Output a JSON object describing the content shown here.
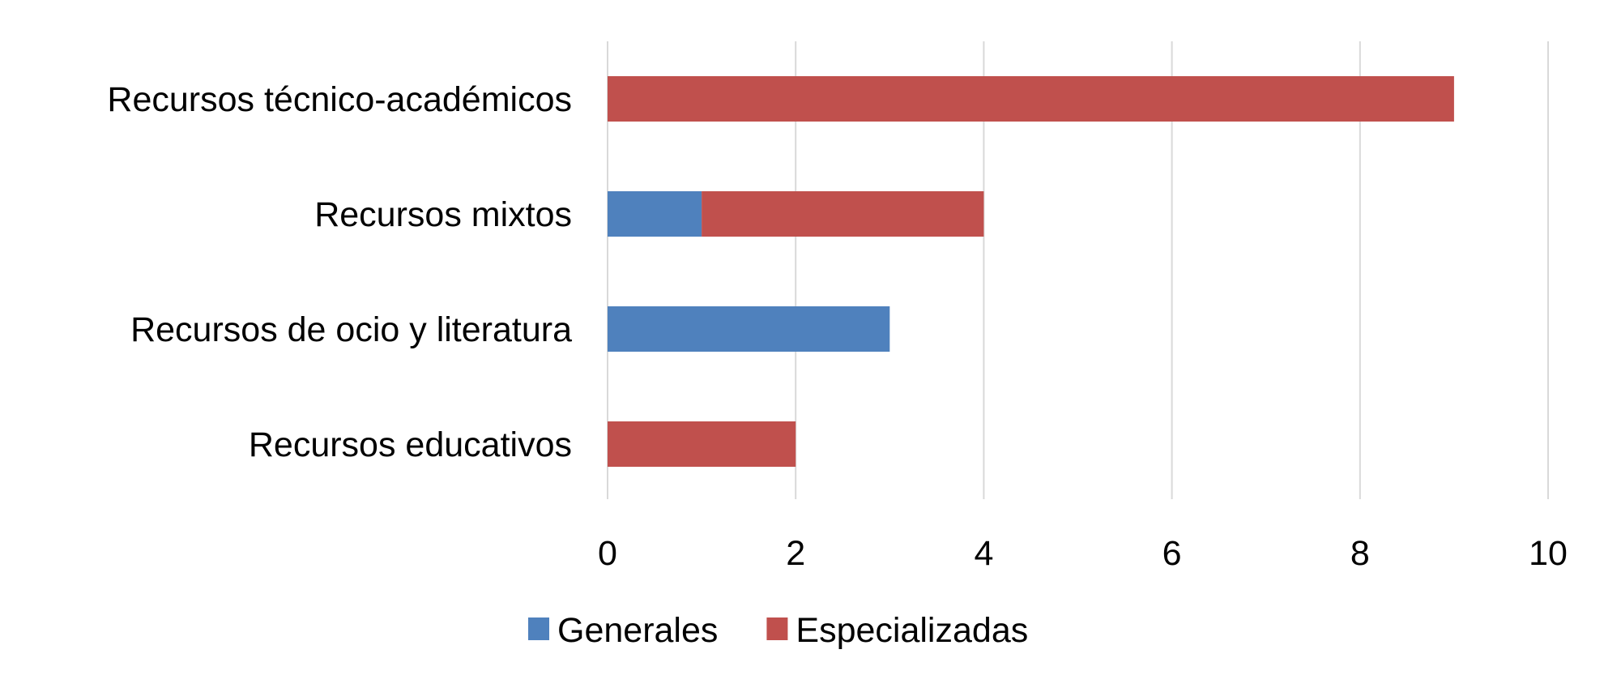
{
  "chart_data": {
    "type": "bar",
    "orientation": "horizontal",
    "stacked": true,
    "categories": [
      "Recursos técnico-académicos",
      "Recursos mixtos",
      "Recursos de ocio y literatura",
      "Recursos educativos"
    ],
    "series": [
      {
        "name": "Generales",
        "color": "#4F81BD",
        "values": [
          0,
          1,
          3,
          0
        ]
      },
      {
        "name": "Especializadas",
        "color": "#C0504D",
        "values": [
          9,
          3,
          0,
          2
        ]
      }
    ],
    "xlim": [
      0,
      10
    ],
    "xticks": [
      "0",
      "2",
      "4",
      "6",
      "8",
      "10"
    ],
    "grid": true,
    "legend": "bottom"
  }
}
